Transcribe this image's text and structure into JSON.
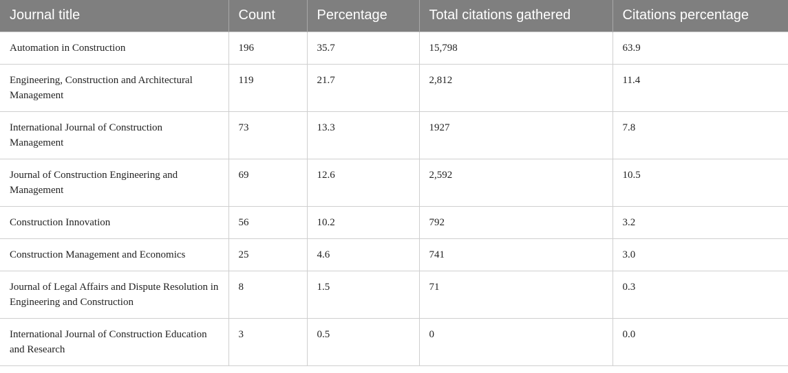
{
  "table": {
    "columns": [
      "Journal title",
      "Count",
      "Percentage",
      "Total citations gathered",
      "Citations percentage"
    ],
    "rows": [
      [
        "Automation in Construction",
        "196",
        "35.7",
        "15,798",
        "63.9"
      ],
      [
        "Engineering, Construction and Architectural Management",
        "119",
        "21.7",
        "2,812",
        "11.4"
      ],
      [
        "International Journal of Construction Management",
        "73",
        "13.3",
        "1927",
        "7.8"
      ],
      [
        "Journal of Construction Engineering and Management",
        "69",
        "12.6",
        "2,592",
        "10.5"
      ],
      [
        "Construction Innovation",
        "56",
        "10.2",
        "792",
        "3.2"
      ],
      [
        "Construction Management and Economics",
        "25",
        "4.6",
        "741",
        "3.0"
      ],
      [
        "Journal of Legal Affairs and Dispute Resolution in Engineering and Construction",
        "8",
        "1.5",
        "71",
        "0.3"
      ],
      [
        "International Journal of Construction Education and Research",
        "3",
        "0.5",
        "0",
        "0.0"
      ]
    ]
  }
}
